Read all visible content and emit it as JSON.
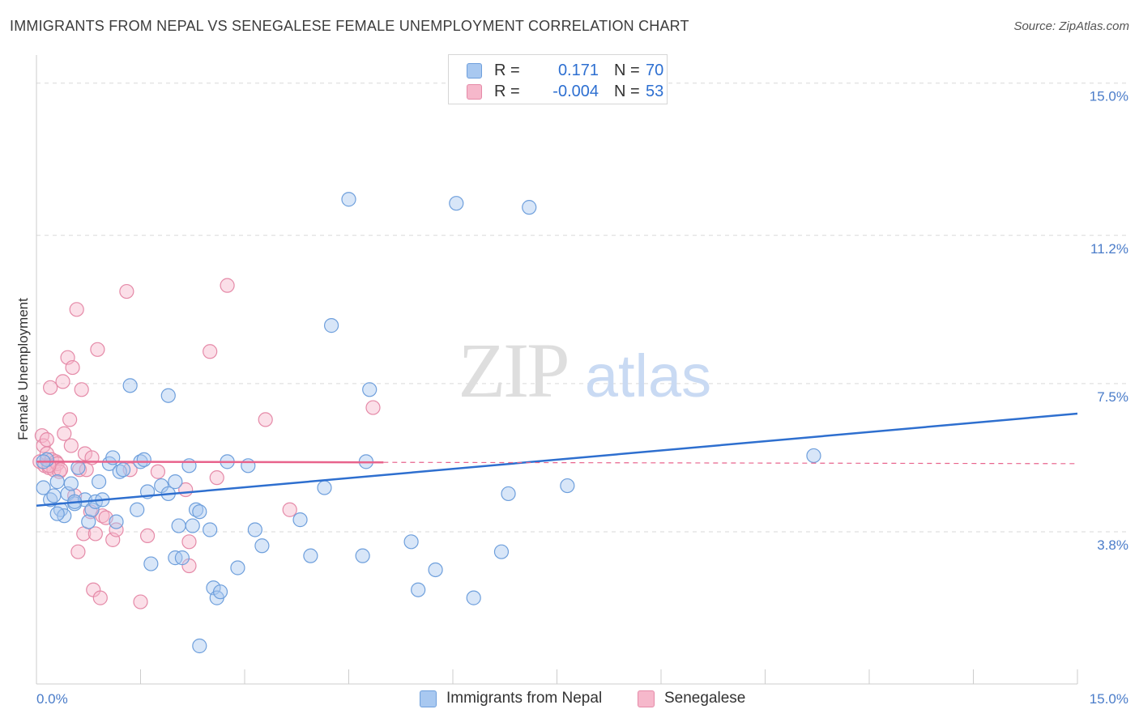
{
  "title": "IMMIGRANTS FROM NEPAL VS SENEGALESE FEMALE UNEMPLOYMENT CORRELATION CHART",
  "source": "Source: ZipAtlas.com",
  "watermark": {
    "zip": "ZIP",
    "atlas": "atlas"
  },
  "legend_top": [
    {
      "r_label": "R =",
      "r_value": "0.171",
      "n_label": "N =",
      "n_value": "70"
    },
    {
      "r_label": "R =",
      "r_value": "-0.004",
      "n_label": "N =",
      "n_value": "53"
    }
  ],
  "legend_bottom": [
    {
      "label": "Immigrants from Nepal"
    },
    {
      "label": "Senegalese"
    }
  ],
  "colors": {
    "blue_fill": "#a8c8f0",
    "blue_stroke": "#6e9fdc",
    "blue_line": "#2e6fcf",
    "pink_fill": "#f6b8cb",
    "pink_stroke": "#e58aa8",
    "pink_line": "#e8638c",
    "grid": "#d9d9d9",
    "tick_text": "#4a7cc9"
  },
  "chart_data": {
    "type": "scatter",
    "title": "IMMIGRANTS FROM NEPAL VS SENEGALESE FEMALE UNEMPLOYMENT CORRELATION CHART",
    "xlabel": "",
    "ylabel": "Female Unemployment",
    "xlim": [
      0,
      15
    ],
    "ylim": [
      0,
      15.5
    ],
    "x_tick_labels": [
      "0.0%",
      "15.0%"
    ],
    "y_ticks": [
      3.8,
      7.5,
      11.2,
      15.0
    ],
    "y_tick_labels": [
      "3.8%",
      "7.5%",
      "11.2%",
      "15.0%"
    ],
    "grid": true,
    "series": [
      {
        "name": "Immigrants from Nepal",
        "color": "blue",
        "r": 0.171,
        "n": 70,
        "trend": {
          "x0": 0.0,
          "y0": 4.45,
          "x1": 15.0,
          "y1": 6.75,
          "dashed_from": null
        },
        "points": [
          [
            0.1,
            4.9
          ],
          [
            0.15,
            5.6
          ],
          [
            0.2,
            4.6
          ],
          [
            0.25,
            4.7
          ],
          [
            0.3,
            5.05
          ],
          [
            0.35,
            4.35
          ],
          [
            0.4,
            4.2
          ],
          [
            0.45,
            4.75
          ],
          [
            0.5,
            5.0
          ],
          [
            0.55,
            4.5
          ],
          [
            0.6,
            5.4
          ],
          [
            0.7,
            4.6
          ],
          [
            0.75,
            4.05
          ],
          [
            0.8,
            4.35
          ],
          [
            0.85,
            4.55
          ],
          [
            0.9,
            5.05
          ],
          [
            1.05,
            5.5
          ],
          [
            1.1,
            5.65
          ],
          [
            1.15,
            4.05
          ],
          [
            1.2,
            5.3
          ],
          [
            1.25,
            5.35
          ],
          [
            1.35,
            7.45
          ],
          [
            1.45,
            4.35
          ],
          [
            1.5,
            5.55
          ],
          [
            1.55,
            5.6
          ],
          [
            1.6,
            4.8
          ],
          [
            1.65,
            3.0
          ],
          [
            1.8,
            4.95
          ],
          [
            1.9,
            4.75
          ],
          [
            1.9,
            7.2
          ],
          [
            2.0,
            3.15
          ],
          [
            2.0,
            5.05
          ],
          [
            2.05,
            3.95
          ],
          [
            2.1,
            3.15
          ],
          [
            2.2,
            5.45
          ],
          [
            2.25,
            3.95
          ],
          [
            2.3,
            4.35
          ],
          [
            2.35,
            4.3
          ],
          [
            2.5,
            3.85
          ],
          [
            2.55,
            2.4
          ],
          [
            2.6,
            2.15
          ],
          [
            2.65,
            2.3
          ],
          [
            2.75,
            5.55
          ],
          [
            2.9,
            2.9
          ],
          [
            3.05,
            5.45
          ],
          [
            3.15,
            3.85
          ],
          [
            3.25,
            3.45
          ],
          [
            3.8,
            4.1
          ],
          [
            3.95,
            3.2
          ],
          [
            4.15,
            4.9
          ],
          [
            4.25,
            8.95
          ],
          [
            4.5,
            12.1
          ],
          [
            4.7,
            3.2
          ],
          [
            4.75,
            5.55
          ],
          [
            4.8,
            7.35
          ],
          [
            5.4,
            3.55
          ],
          [
            5.5,
            2.35
          ],
          [
            5.75,
            2.85
          ],
          [
            6.05,
            12.0
          ],
          [
            6.3,
            2.15
          ],
          [
            6.7,
            3.3
          ],
          [
            6.8,
            4.75
          ],
          [
            7.1,
            11.9
          ],
          [
            7.65,
            4.95
          ],
          [
            11.2,
            5.7
          ],
          [
            2.35,
            0.95
          ],
          [
            0.55,
            4.55
          ],
          [
            0.95,
            4.6
          ],
          [
            0.3,
            4.25
          ],
          [
            0.1,
            5.55
          ]
        ]
      },
      {
        "name": "Senegalese",
        "color": "pink",
        "r": -0.004,
        "n": 53,
        "trend": {
          "x0": 0.0,
          "y0": 5.55,
          "x1": 15.0,
          "y1": 5.5,
          "dashed_from": 5.0
        },
        "points": [
          [
            0.05,
            5.55
          ],
          [
            0.08,
            6.2
          ],
          [
            0.1,
            5.95
          ],
          [
            0.12,
            5.45
          ],
          [
            0.15,
            6.1
          ],
          [
            0.15,
            5.75
          ],
          [
            0.18,
            5.4
          ],
          [
            0.2,
            7.4
          ],
          [
            0.22,
            5.6
          ],
          [
            0.25,
            5.35
          ],
          [
            0.28,
            5.55
          ],
          [
            0.3,
            5.5
          ],
          [
            0.33,
            5.3
          ],
          [
            0.35,
            5.35
          ],
          [
            0.38,
            7.55
          ],
          [
            0.4,
            6.25
          ],
          [
            0.45,
            8.15
          ],
          [
            0.48,
            6.6
          ],
          [
            0.5,
            5.95
          ],
          [
            0.52,
            7.9
          ],
          [
            0.55,
            4.7
          ],
          [
            0.58,
            9.35
          ],
          [
            0.6,
            3.3
          ],
          [
            0.62,
            5.35
          ],
          [
            0.65,
            7.35
          ],
          [
            0.68,
            3.75
          ],
          [
            0.7,
            5.75
          ],
          [
            0.72,
            5.35
          ],
          [
            0.78,
            4.3
          ],
          [
            0.8,
            5.65
          ],
          [
            0.82,
            2.35
          ],
          [
            0.85,
            3.75
          ],
          [
            0.88,
            8.35
          ],
          [
            0.92,
            2.15
          ],
          [
            0.95,
            4.2
          ],
          [
            1.0,
            4.15
          ],
          [
            1.1,
            3.6
          ],
          [
            1.15,
            3.85
          ],
          [
            1.3,
            9.8
          ],
          [
            1.35,
            5.35
          ],
          [
            1.5,
            2.05
          ],
          [
            1.6,
            3.7
          ],
          [
            1.75,
            5.3
          ],
          [
            2.15,
            4.85
          ],
          [
            2.2,
            3.55
          ],
          [
            2.2,
            2.95
          ],
          [
            2.5,
            8.3
          ],
          [
            2.6,
            5.15
          ],
          [
            2.75,
            9.95
          ],
          [
            3.3,
            6.6
          ],
          [
            3.65,
            4.35
          ],
          [
            4.85,
            6.9
          ],
          [
            0.18,
            5.45
          ]
        ]
      }
    ]
  }
}
